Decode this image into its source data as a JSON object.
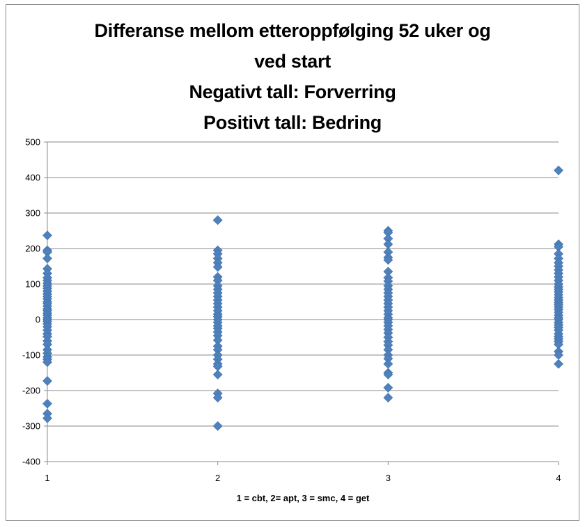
{
  "chart_data": {
    "type": "scatter",
    "title": [
      "Differanse mellom etteroppfølging 52 uker og",
      "ved start",
      "Negativt tall: Forverring",
      "Positivt tall: Bedring"
    ],
    "xlabel": "1 = cbt, 2= apt, 3 = smc, 4 = get",
    "ylabel": "",
    "xlim": [
      1,
      4
    ],
    "ylim": [
      -400,
      500
    ],
    "x_ticks": [
      "1",
      "2",
      "3",
      "4"
    ],
    "y_ticks": [
      "500",
      "400",
      "300",
      "200",
      "100",
      "0",
      "-100",
      "-200",
      "-300",
      "-400"
    ],
    "grid": "horizontal",
    "legend": "none",
    "marker_color": "#4F81BD",
    "marker_shape": "diamond",
    "series": [
      {
        "points": [
          [
            1,
            237
          ],
          [
            1,
            195
          ],
          [
            1,
            190
          ],
          [
            1,
            172
          ],
          [
            1,
            143
          ],
          [
            1,
            130
          ],
          [
            1,
            118
          ],
          [
            1,
            110
          ],
          [
            1,
            102
          ],
          [
            1,
            95
          ],
          [
            1,
            88
          ],
          [
            1,
            80
          ],
          [
            1,
            72
          ],
          [
            1,
            65
          ],
          [
            1,
            58
          ],
          [
            1,
            50
          ],
          [
            1,
            45
          ],
          [
            1,
            38
          ],
          [
            1,
            30
          ],
          [
            1,
            25
          ],
          [
            1,
            18
          ],
          [
            1,
            12
          ],
          [
            1,
            5
          ],
          [
            1,
            0
          ],
          [
            1,
            -5
          ],
          [
            1,
            -12
          ],
          [
            1,
            -20
          ],
          [
            1,
            -30
          ],
          [
            1,
            -40
          ],
          [
            1,
            -48
          ],
          [
            1,
            -60
          ],
          [
            1,
            -70
          ],
          [
            1,
            -85
          ],
          [
            1,
            -95
          ],
          [
            1,
            -105
          ],
          [
            1,
            -112
          ],
          [
            1,
            -120
          ],
          [
            1,
            -173
          ],
          [
            1,
            -237
          ],
          [
            1,
            -265
          ],
          [
            1,
            -278
          ],
          [
            2,
            280
          ],
          [
            2,
            195
          ],
          [
            2,
            185
          ],
          [
            2,
            172
          ],
          [
            2,
            160
          ],
          [
            2,
            148
          ],
          [
            2,
            120
          ],
          [
            2,
            110
          ],
          [
            2,
            95
          ],
          [
            2,
            85
          ],
          [
            2,
            75
          ],
          [
            2,
            65
          ],
          [
            2,
            55
          ],
          [
            2,
            45
          ],
          [
            2,
            35
          ],
          [
            2,
            25
          ],
          [
            2,
            15
          ],
          [
            2,
            8
          ],
          [
            2,
            0
          ],
          [
            2,
            -8
          ],
          [
            2,
            -18
          ],
          [
            2,
            -25
          ],
          [
            2,
            -35
          ],
          [
            2,
            -45
          ],
          [
            2,
            -58
          ],
          [
            2,
            -75
          ],
          [
            2,
            -85
          ],
          [
            2,
            -100
          ],
          [
            2,
            -112
          ],
          [
            2,
            -125
          ],
          [
            2,
            -132
          ],
          [
            2,
            -155
          ],
          [
            2,
            -208
          ],
          [
            2,
            -220
          ],
          [
            2,
            -300
          ],
          [
            3,
            250
          ],
          [
            3,
            245
          ],
          [
            3,
            228
          ],
          [
            3,
            212
          ],
          [
            3,
            190
          ],
          [
            3,
            175
          ],
          [
            3,
            168
          ],
          [
            3,
            135
          ],
          [
            3,
            118
          ],
          [
            3,
            108
          ],
          [
            3,
            95
          ],
          [
            3,
            85
          ],
          [
            3,
            75
          ],
          [
            3,
            65
          ],
          [
            3,
            55
          ],
          [
            3,
            45
          ],
          [
            3,
            35
          ],
          [
            3,
            25
          ],
          [
            3,
            15
          ],
          [
            3,
            5
          ],
          [
            3,
            0
          ],
          [
            3,
            -8
          ],
          [
            3,
            -18
          ],
          [
            3,
            -28
          ],
          [
            3,
            -38
          ],
          [
            3,
            -50
          ],
          [
            3,
            -62
          ],
          [
            3,
            -72
          ],
          [
            3,
            -85
          ],
          [
            3,
            -100
          ],
          [
            3,
            -110
          ],
          [
            3,
            -125
          ],
          [
            3,
            -150
          ],
          [
            3,
            -155
          ],
          [
            3,
            -192
          ],
          [
            3,
            -220
          ],
          [
            4,
            420
          ],
          [
            4,
            212
          ],
          [
            4,
            205
          ],
          [
            4,
            185
          ],
          [
            4,
            172
          ],
          [
            4,
            160
          ],
          [
            4,
            150
          ],
          [
            4,
            140
          ],
          [
            4,
            130
          ],
          [
            4,
            120
          ],
          [
            4,
            110
          ],
          [
            4,
            100
          ],
          [
            4,
            92
          ],
          [
            4,
            85
          ],
          [
            4,
            78
          ],
          [
            4,
            70
          ],
          [
            4,
            62
          ],
          [
            4,
            55
          ],
          [
            4,
            48
          ],
          [
            4,
            42
          ],
          [
            4,
            35
          ],
          [
            4,
            28
          ],
          [
            4,
            20
          ],
          [
            4,
            12
          ],
          [
            4,
            5
          ],
          [
            4,
            0
          ],
          [
            4,
            -8
          ],
          [
            4,
            -15
          ],
          [
            4,
            -22
          ],
          [
            4,
            -30
          ],
          [
            4,
            -40
          ],
          [
            4,
            -48
          ],
          [
            4,
            -55
          ],
          [
            4,
            -62
          ],
          [
            4,
            -70
          ],
          [
            4,
            -90
          ],
          [
            4,
            -100
          ],
          [
            4,
            -125
          ]
        ]
      }
    ]
  }
}
